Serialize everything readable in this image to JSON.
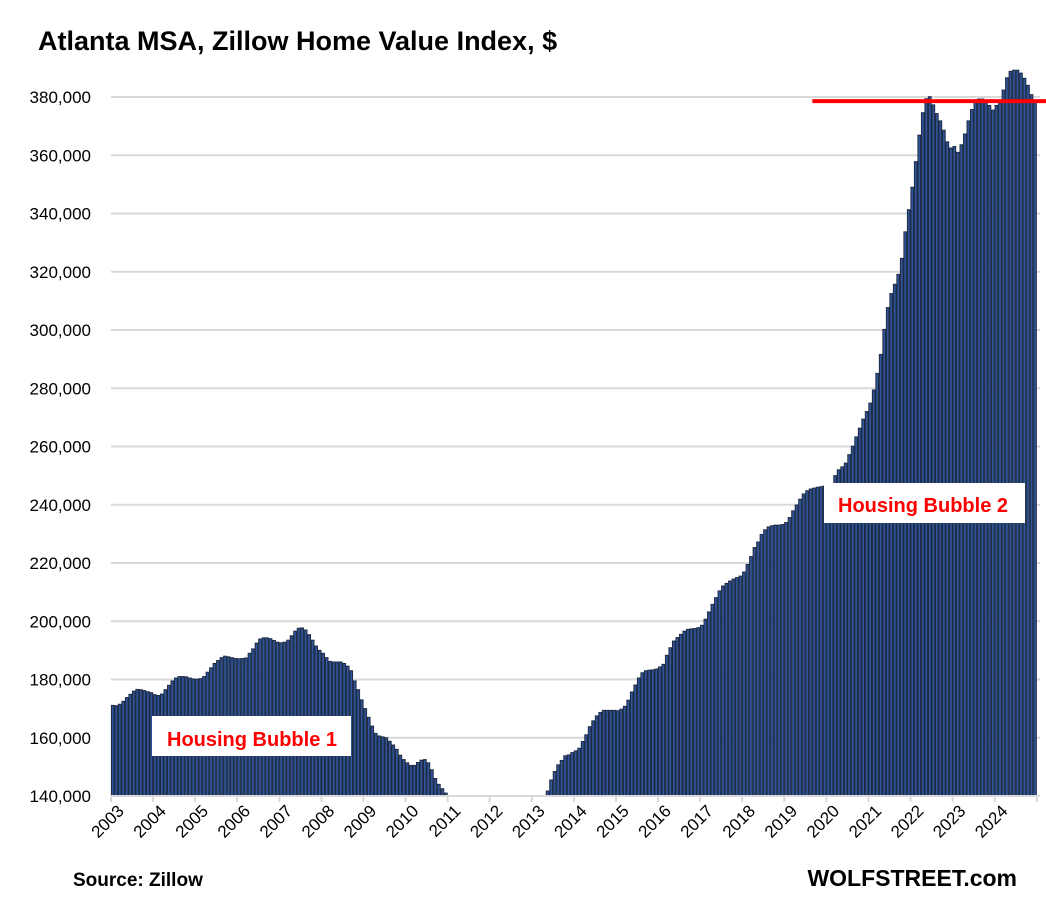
{
  "chart_data": {
    "type": "bar",
    "title": "Atlanta MSA, Zillow Home Value Index, $",
    "xlabel": "",
    "ylabel": "",
    "frequency": "monthly",
    "start": "2003-01",
    "ylim": [
      140000,
      390000
    ],
    "yticks": [
      140000,
      160000,
      180000,
      200000,
      220000,
      240000,
      260000,
      280000,
      300000,
      320000,
      340000,
      360000,
      380000
    ],
    "ytick_labels": [
      "140,000",
      "160,000",
      "180,000",
      "200,000",
      "220,000",
      "240,000",
      "260,000",
      "280,000",
      "300,000",
      "320,000",
      "340,000",
      "360,000",
      "380,000"
    ],
    "xtick_labels": [
      "2003",
      "2004",
      "2005",
      "2006",
      "2007",
      "2008",
      "2009",
      "2010",
      "2011",
      "2012",
      "2013",
      "2014",
      "2015",
      "2016",
      "2017",
      "2018",
      "2019",
      "2020",
      "2021",
      "2022",
      "2023",
      "2024"
    ],
    "grid": "horizontal",
    "series": [
      {
        "name": "Zillow Home Value Index",
        "color": "#2f5597",
        "edge_color": "#1f2a44",
        "values": [
          171100,
          171000,
          171500,
          172500,
          173800,
          174900,
          176000,
          176600,
          176500,
          176200,
          175800,
          175500,
          174800,
          174500,
          175000,
          176500,
          178000,
          179500,
          180500,
          181000,
          181000,
          180900,
          180500,
          180200,
          180100,
          180300,
          181000,
          182500,
          184000,
          185500,
          186500,
          187500,
          188000,
          187800,
          187500,
          187200,
          187100,
          187200,
          187400,
          189000,
          190500,
          192500,
          193900,
          194300,
          194300,
          194000,
          193400,
          192800,
          192600,
          192800,
          193500,
          195000,
          196600,
          197600,
          197700,
          197000,
          195400,
          193500,
          191500,
          190000,
          189000,
          187500,
          186200,
          186000,
          186000,
          186000,
          185500,
          184600,
          183000,
          179500,
          176500,
          173000,
          170000,
          167000,
          164000,
          161500,
          160600,
          160300,
          160000,
          158800,
          157500,
          156000,
          154000,
          152500,
          151400,
          150500,
          150500,
          151500,
          152300,
          152500,
          151400,
          149000,
          146000,
          144000,
          142500,
          141000,
          null,
          null,
          null,
          null,
          null,
          null,
          null,
          null,
          null,
          null,
          null,
          null,
          null,
          null,
          null,
          null,
          null,
          null,
          null,
          null,
          null,
          null,
          null,
          null,
          null,
          null,
          null,
          null,
          141700,
          145500,
          148400,
          150700,
          152200,
          153800,
          154100,
          154900,
          155500,
          156400,
          158700,
          161000,
          163800,
          165800,
          167500,
          168700,
          169400,
          169400,
          169400,
          169400,
          169300,
          169800,
          170800,
          172900,
          175700,
          178100,
          180500,
          182300,
          183000,
          183200,
          183300,
          183600,
          184300,
          185200,
          188300,
          190900,
          193200,
          194400,
          195500,
          196600,
          197200,
          197400,
          197500,
          197800,
          198600,
          200700,
          203200,
          205800,
          208100,
          210400,
          212100,
          213000,
          213800,
          214500,
          215000,
          215500,
          216900,
          219500,
          222200,
          225300,
          227200,
          229800,
          231400,
          232400,
          232800,
          233000,
          233000,
          233200,
          233900,
          235600,
          237900,
          239900,
          241900,
          243700,
          244800,
          245400,
          245700,
          246000,
          246200,
          246400,
          246500,
          247000,
          250000,
          252000,
          253000,
          254300,
          257200,
          260100,
          263300,
          266300,
          269400,
          272000,
          274900,
          279400,
          285100,
          291600,
          300200,
          307700,
          312500,
          315700,
          319100,
          324600,
          333700,
          341300,
          349000,
          357800,
          366900,
          374600,
          379400,
          380100,
          377300,
          374300,
          371800,
          368600,
          364600,
          362500,
          363000,
          361000,
          363600,
          367300,
          371800,
          375700,
          378400,
          379300,
          379300,
          378400,
          377100,
          375500,
          377100,
          379000,
          382400,
          386600,
          388800,
          389200,
          389200,
          388200,
          386400,
          384000,
          380800,
          378500
        ]
      }
    ],
    "reference_line": {
      "value": 378600,
      "color": "#ff0000",
      "from": "2019-09",
      "to": "2024-12"
    },
    "annotations": [
      {
        "text": "Housing Bubble 1",
        "near": "2005-2008"
      },
      {
        "text": "Housing Bubble 2",
        "near": "2020-2024"
      }
    ],
    "source": "Source: Zillow",
    "brand": "WOLFSTREET.com"
  }
}
